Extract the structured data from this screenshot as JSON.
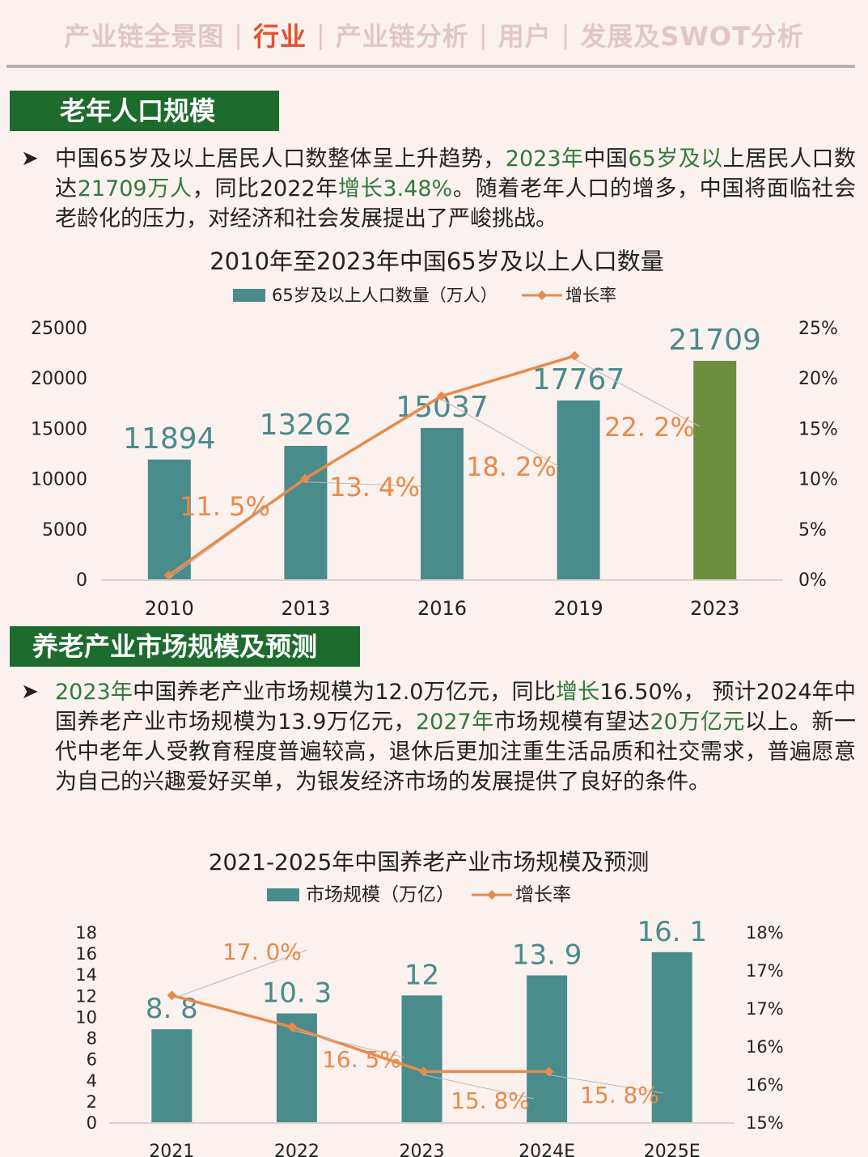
{
  "nav": {
    "tabs": [
      {
        "label": "产业链全景图",
        "active": false
      },
      {
        "label": "行业",
        "active": true
      },
      {
        "label": "产业链分析",
        "active": false
      },
      {
        "label": "用户",
        "active": false
      },
      {
        "label": "发展及SWOT分析",
        "active": false
      }
    ],
    "separator": "|"
  },
  "section1": {
    "label": "老年人口规模",
    "bullet": "➤",
    "paragraph": [
      {
        "t": "中国65岁及以上居民人口数整体呈上升趋势，",
        "hl": false
      },
      {
        "t": "2023年",
        "hl": true
      },
      {
        "t": "中国",
        "hl": false
      },
      {
        "t": "65岁及以",
        "hl": true
      },
      {
        "t": "上居民人口数达",
        "hl": false
      },
      {
        "t": "21709万人",
        "hl": true
      },
      {
        "t": "，同比2022年",
        "hl": false
      },
      {
        "t": "增长3.48%",
        "hl": true
      },
      {
        "t": "。随着老年人口的增多，中国将面临社会老龄化的压力，对经济和社会发展提出了严峻挑战。",
        "hl": false
      }
    ]
  },
  "section2": {
    "label": "养老产业市场规模及预测",
    "bullet": "➤",
    "paragraph": [
      {
        "t": "2023年",
        "hl": true
      },
      {
        "t": "中国养老产业市场规模为12.0万亿元，同比",
        "hl": false
      },
      {
        "t": "增长",
        "hl": true
      },
      {
        "t": "16.50%， 预计2024年中国养老产业市场规模为13.9万亿元，",
        "hl": false
      },
      {
        "t": "2027年",
        "hl": true
      },
      {
        "t": "市场规模有望达",
        "hl": false
      },
      {
        "t": "20万亿元",
        "hl": true
      },
      {
        "t": "以上。新一代中老年人受教育程度普遍较高，退休后更加注重生活品质和社交需求，普遍愿意为自己的兴趣爱好买单，为银发经济市场的发展提供了良好的条件。",
        "hl": false
      }
    ]
  },
  "chart_data": [
    {
      "type": "bar",
      "title": "2010年至2023年中国65岁及以上人口数量",
      "categories": [
        "2010",
        "2013",
        "2016",
        "2019",
        "2023"
      ],
      "series": [
        {
          "name": "65岁及以上人口数量（万人）",
          "type": "bar",
          "values": [
            11894,
            13262,
            15037,
            17767,
            21709
          ],
          "color": "#4a8b8c",
          "highlight_color": "#6b8e3f",
          "highlight_index": 4
        },
        {
          "name": "增长率",
          "type": "line",
          "axis": "right",
          "values": [
            11.5,
            13.4,
            18.2,
            22.2
          ],
          "positions": [
            0.4,
            10.0,
            18.2,
            22.2
          ],
          "labels": [
            "11. 5%",
            "13. 4%",
            "18. 2%",
            "22. 2%"
          ],
          "color": "#e88a4a"
        }
      ],
      "bar_labels": [
        "11894",
        "13262",
        "15037",
        "17767",
        "21709"
      ],
      "y_ticks": [
        "25000",
        "20000",
        "15000",
        "10000",
        "5000",
        "0"
      ],
      "y2_ticks": [
        "25%",
        "20%",
        "15%",
        "10%",
        "5%",
        "0%"
      ],
      "ylim": [
        0,
        25000
      ],
      "y2lim": [
        0,
        25
      ],
      "legend": "top-center"
    },
    {
      "type": "bar",
      "title": "2021-2025年中国养老产业市场规模及预测",
      "categories": [
        "2021",
        "2022",
        "2023",
        "2024E",
        "2025E"
      ],
      "series": [
        {
          "name": "市场规模（万亿）",
          "type": "bar",
          "values": [
            8.8,
            10.3,
            12,
            13.9,
            16.1
          ],
          "color": "#4a8b8c"
        },
        {
          "name": "增长率",
          "type": "line",
          "axis": "right",
          "values": [
            17.0,
            16.5,
            15.8,
            15.8
          ],
          "positions": [
            17.0,
            16.5,
            15.8,
            15.8
          ],
          "labels": [
            "17. 0%",
            "16. 5%",
            "15. 8%",
            "15. 8%"
          ],
          "color": "#e88a4a"
        }
      ],
      "bar_labels": [
        "8. 8",
        "10. 3",
        "12",
        "13. 9",
        "16. 1"
      ],
      "y_ticks": [
        "18",
        "16",
        "14",
        "12",
        "10",
        "8",
        "6",
        "4",
        "2",
        "0"
      ],
      "y2_ticks": [
        "18%",
        "17%",
        "17%",
        "16%",
        "16%",
        "15%"
      ],
      "ylim": [
        0,
        18
      ],
      "y2lim": [
        15,
        18
      ],
      "legend": "top-center"
    }
  ]
}
